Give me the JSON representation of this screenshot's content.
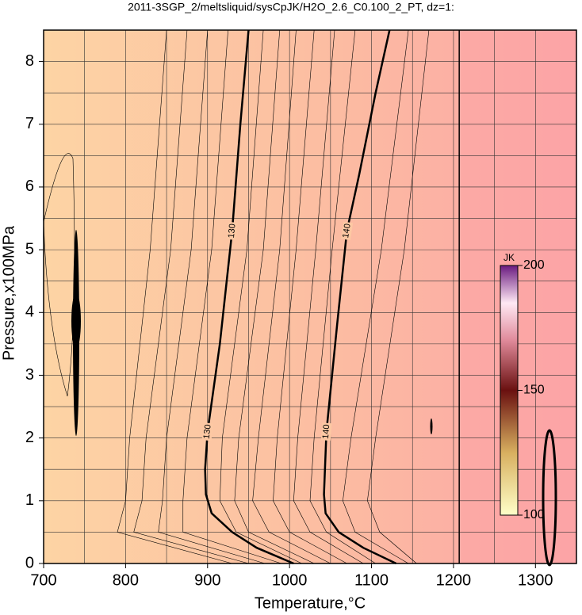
{
  "chart_data": {
    "type": "contour",
    "title": "2011-3SGP_2/meltsliquid/sysCpJK/H2O_2.6_C0.100_2_PT, dz=1:",
    "x_label": "Temperature,°C",
    "y_label": "Pressure,x100MPa",
    "xlim": [
      700,
      1350
    ],
    "ylim": [
      0,
      8.5
    ],
    "xticks": [
      700,
      800,
      900,
      1000,
      1100,
      1200,
      1300
    ],
    "yticks": [
      0,
      1,
      2,
      3,
      4,
      5,
      6,
      7,
      8
    ],
    "xgrid": [
      750,
      800,
      850,
      900,
      950,
      1000,
      1050,
      1100,
      1150,
      1200,
      1250,
      1300
    ],
    "ygrid": [
      0.5,
      1,
      1.5,
      2,
      2.5,
      3,
      3.5,
      4,
      4.5,
      5,
      5.5,
      6,
      6.5,
      7,
      7.5,
      8
    ],
    "colorbar": {
      "label": "JK",
      "clim": [
        100,
        200
      ],
      "ticks": [
        100,
        150,
        200
      ]
    },
    "major_contours": [
      {
        "level": "130",
        "x": [
          950,
          940,
          930,
          915,
          900,
          897,
          898,
          905,
          930,
          960,
          1005
        ],
        "y": [
          8.5,
          7,
          5.3,
          3.5,
          2.1,
          1.5,
          1.1,
          0.8,
          0.5,
          0.25,
          0
        ],
        "label_at": [
          2,
          4
        ]
      },
      {
        "level": "140",
        "x": [
          1122,
          1105,
          1085,
          1070,
          1058,
          1045,
          1042,
          1044,
          1060,
          1090,
          1130
        ],
        "y": [
          8.5,
          7.5,
          6.2,
          5.3,
          3.8,
          2.1,
          1.1,
          0.8,
          0.5,
          0.25,
          0
        ],
        "label_at": [
          3,
          5
        ]
      }
    ],
    "minor_contours": [
      {
        "x": [
          850,
          830,
          805,
          800,
          790,
          930
        ],
        "y": [
          8.5,
          5,
          2,
          1,
          0.5,
          0
        ]
      },
      {
        "x": [
          875,
          855,
          825,
          820,
          810,
          950
        ],
        "y": [
          8.5,
          5,
          2,
          1,
          0.5,
          0
        ]
      },
      {
        "x": [
          900,
          880,
          850,
          845,
          840,
          970
        ],
        "y": [
          8.5,
          5,
          2,
          1,
          0.5,
          0
        ]
      },
      {
        "x": [
          925,
          905,
          875,
          870,
          870,
          990
        ],
        "y": [
          8.5,
          5,
          2,
          1,
          0.5,
          0
        ]
      },
      {
        "x": [
          968,
          948,
          918,
          915,
          935,
          1015
        ],
        "y": [
          8.5,
          5,
          2,
          1,
          0.5,
          0
        ]
      },
      {
        "x": [
          988,
          968,
          938,
          933,
          950,
          1030
        ],
        "y": [
          8.5,
          5,
          2,
          1,
          0.5,
          0
        ]
      },
      {
        "x": [
          1008,
          988,
          962,
          955,
          975,
          1050
        ],
        "y": [
          8.5,
          5,
          2,
          1,
          0.5,
          0
        ]
      },
      {
        "x": [
          1030,
          1008,
          985,
          980,
          1000,
          1070
        ],
        "y": [
          8.5,
          5,
          2,
          1,
          0.5,
          0
        ]
      },
      {
        "x": [
          1055,
          1032,
          1010,
          1005,
          1025,
          1090
        ],
        "y": [
          8.5,
          5,
          2,
          1,
          0.5,
          0
        ]
      },
      {
        "x": [
          1080,
          1052,
          1030,
          1025,
          1045,
          1105
        ],
        "y": [
          8.5,
          5,
          2,
          1,
          0.5,
          0
        ]
      },
      {
        "x": [
          1145,
          1112,
          1075,
          1065,
          1080,
          1145
        ],
        "y": [
          8.5,
          5,
          2,
          1,
          0.5,
          0
        ]
      },
      {
        "x": [
          1170,
          1140,
          1105,
          1095,
          1110,
          1155
        ],
        "y": [
          8.5,
          5,
          2,
          1,
          0.5,
          0
        ]
      },
      {
        "x": [
          1207,
          1207,
          1207,
          1207,
          1207,
          1207
        ],
        "y": [
          8.5,
          5,
          2,
          1,
          0.5,
          0
        ]
      }
    ]
  }
}
